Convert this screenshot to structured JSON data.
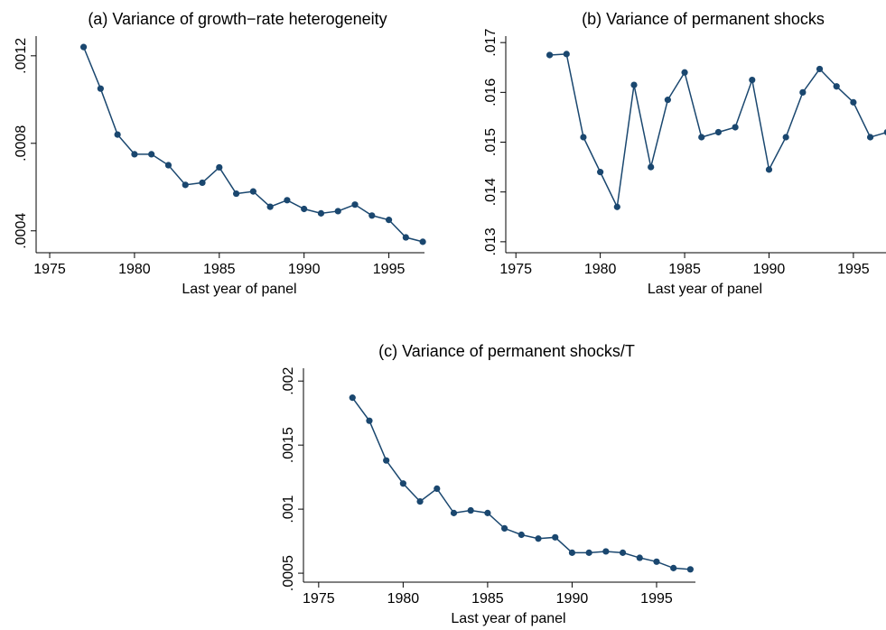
{
  "chart_data": [
    {
      "type": "line",
      "title": "(a) Variance of growth−rate heterogeneity",
      "x_label": "Last year of panel",
      "x": [
        1977,
        1978,
        1979,
        1980,
        1981,
        1982,
        1983,
        1984,
        1985,
        1986,
        1987,
        1988,
        1989,
        1990,
        1991,
        1992,
        1993,
        1994,
        1995,
        1996,
        1997
      ],
      "series": [
        {
          "color": "#1a476f",
          "values": [
            0.00124,
            0.00105,
            0.00084,
            0.00075,
            0.00075,
            0.0007,
            0.00061,
            0.00062,
            0.00069,
            0.00057,
            0.00058,
            0.00051,
            0.00054,
            0.0005,
            0.00048,
            0.00049,
            0.00052,
            0.00047,
            0.00045,
            0.00037,
            0.00035
          ]
        }
      ],
      "xlim": [
        1974.2,
        1997.1
      ],
      "xticks": [
        1975,
        1980,
        1985,
        1990,
        1995
      ],
      "ylim": [
        0.0003,
        0.00129
      ],
      "yticks": [
        {
          "value": 0.0004,
          "label": ".0004"
        },
        {
          "value": 0.0008,
          "label": ".0008"
        },
        {
          "value": 0.0012,
          "label": ".0012"
        }
      ]
    },
    {
      "type": "line",
      "title": "(b) Variance of permanent shocks",
      "x_label": "Last year of panel",
      "x": [
        1977,
        1978,
        1979,
        1980,
        1981,
        1982,
        1983,
        1984,
        1985,
        1986,
        1987,
        1988,
        1989,
        1990,
        1991,
        1992,
        1993,
        1994,
        1995,
        1996,
        1997
      ],
      "series": [
        {
          "color": "#1a476f",
          "values": [
            0.01675,
            0.01677,
            0.0151,
            0.0144,
            0.0137,
            0.01615,
            0.0145,
            0.01585,
            0.0164,
            0.0151,
            0.0152,
            0.0153,
            0.01625,
            0.01445,
            0.0151,
            0.016,
            0.01647,
            0.01612,
            0.0158,
            0.0151,
            0.0152
          ]
        }
      ],
      "xlim": [
        1974.4,
        1997.2
      ],
      "xticks": [
        1975,
        1980,
        1985,
        1990,
        1995
      ],
      "ylim": [
        0.01278,
        0.01713
      ],
      "yticks": [
        {
          "value": 0.013,
          "label": ".013"
        },
        {
          "value": 0.014,
          "label": ".014"
        },
        {
          "value": 0.015,
          "label": ".015"
        },
        {
          "value": 0.016,
          "label": ".016"
        },
        {
          "value": 0.017,
          "label": ".017"
        }
      ]
    },
    {
      "type": "line",
      "title": "(c) Variance of permanent shocks/T",
      "x_label": "Last year of panel",
      "x": [
        1977,
        1978,
        1979,
        1980,
        1981,
        1982,
        1983,
        1984,
        1985,
        1986,
        1987,
        1988,
        1989,
        1990,
        1991,
        1992,
        1993,
        1994,
        1995,
        1996,
        1997
      ],
      "series": [
        {
          "color": "#1a476f",
          "values": [
            0.00187,
            0.00169,
            0.00138,
            0.0012,
            0.00106,
            0.00116,
            0.00097,
            0.00099,
            0.00097,
            0.00085,
            0.0008,
            0.00077,
            0.00078,
            0.00066,
            0.00066,
            0.00067,
            0.00066,
            0.00062,
            0.00059,
            0.00054,
            0.00053
          ]
        }
      ],
      "xlim": [
        1974.1,
        1997.3
      ],
      "xticks": [
        1975,
        1980,
        1985,
        1990,
        1995
      ],
      "ylim": [
        0.00043,
        0.0021
      ],
      "yticks": [
        {
          "value": 0.0005,
          "label": ".0005"
        },
        {
          "value": 0.001,
          "label": ".001"
        },
        {
          "value": 0.0015,
          "label": ".0015"
        },
        {
          "value": 0.002,
          "label": ".002"
        }
      ]
    }
  ]
}
